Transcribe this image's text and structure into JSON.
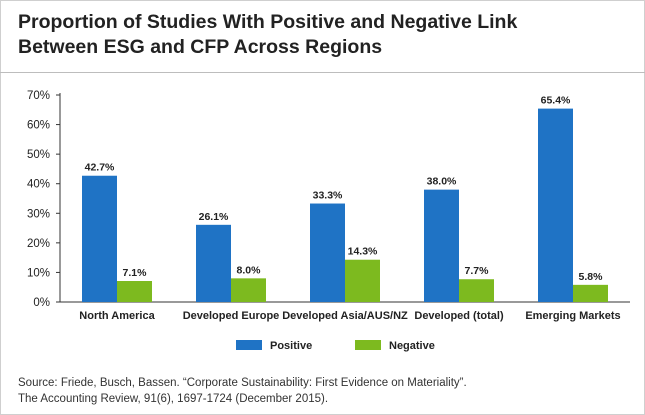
{
  "title_line1": "Proportion of Studies With Positive and Negative Link",
  "title_line2": "Between ESG and CFP Across Regions",
  "source_line1": "Source: Friede, Busch, Bassen. “Corporate Sustainability: First Evidence on Materiality”.",
  "source_line2": "The Accounting Review, 91(6), 1697-1724 (December 2015).",
  "chart_data": {
    "type": "bar",
    "categories": [
      "North America",
      "Developed Europe",
      "Developed Asia/AUS/NZ",
      "Developed (total)",
      "Emerging Markets"
    ],
    "series": [
      {
        "name": "Positive",
        "values": [
          42.7,
          26.1,
          33.3,
          38.0,
          65.4
        ],
        "labels": [
          "42.7%",
          "26.1%",
          "33.3%",
          "38.0%",
          "65.4%"
        ],
        "color": "#1f73c5"
      },
      {
        "name": "Negative",
        "values": [
          7.1,
          8.0,
          14.3,
          7.7,
          5.8
        ],
        "labels": [
          "7.1%",
          "8.0%",
          "14.3%",
          "7.7%",
          "5.8%"
        ],
        "color": "#7dba1f"
      }
    ],
    "yticks": [
      "0%",
      "10%",
      "20%",
      "30%",
      "40%",
      "50%",
      "60%",
      "70%"
    ],
    "ylim": [
      0,
      70
    ],
    "grid": false,
    "legend": "bottom-center"
  }
}
